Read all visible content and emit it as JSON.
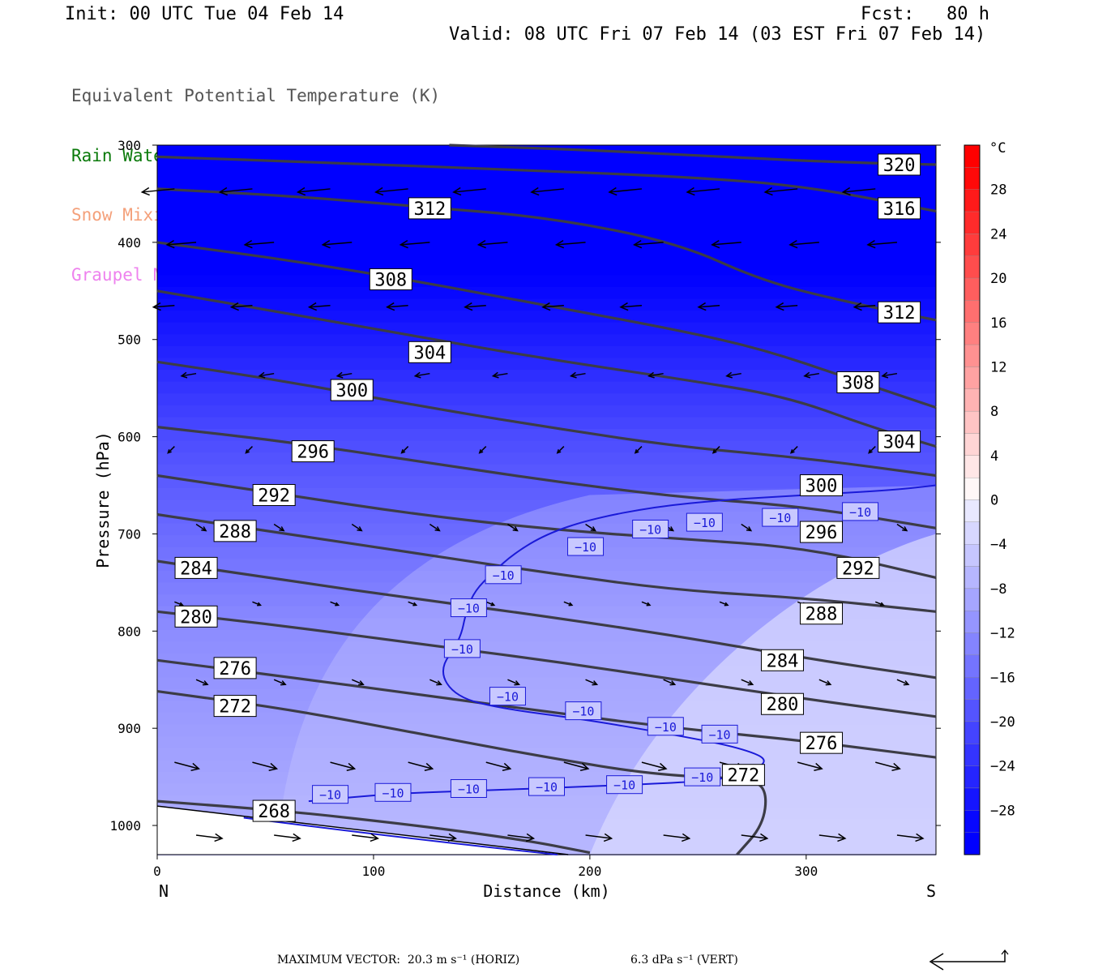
{
  "header": {
    "init": "Init: 00 UTC Tue 04 Feb 14",
    "fcst": "Fcst:   80 h",
    "valid": "Valid: 08 UTC Fri 07 Feb 14 (03 EST Fri 07 Feb 14)"
  },
  "legend": [
    {
      "text": "Equivalent Potential Temperature (K)",
      "color": "#555555"
    },
    {
      "text": "Rain Water Mixing Ratio (g/kg)",
      "color": "#0a7a0a"
    },
    {
      "text": "Snow Mixing Ratio (g/kg)",
      "color": "#f4a07a"
    },
    {
      "text": "Graupel Mixing Ratio (g/kg)",
      "color": "#ee82ee"
    }
  ],
  "footer": {
    "max_vector": "MAXIMUM VECTOR:  20.3 m s⁻¹ (HORIZ)",
    "vert": "6.3 dPa s⁻¹ (VERT)"
  },
  "chart_data": {
    "type": "cross-section contour",
    "xlabel": "Distance (km)",
    "ylabel": "Pressure (hPa)",
    "xlim": [
      0,
      360
    ],
    "ylim": [
      1030,
      300
    ],
    "x_ticks": [
      0,
      100,
      200,
      300
    ],
    "y_ticks": [
      300,
      400,
      500,
      600,
      700,
      800,
      900,
      1000
    ],
    "endpoints": {
      "left": "N",
      "right": "S"
    },
    "colorbar": {
      "unit": "°C",
      "labels": [
        28,
        24,
        20,
        16,
        12,
        8,
        4,
        0,
        -4,
        -8,
        -12,
        -16,
        -20,
        -24,
        -28
      ],
      "step": 2,
      "min": -32,
      "max": 32
    },
    "temperature_field": {
      "note": "shading: temperature, all values below 0 C",
      "approx_temp_by_pressure": [
        [
          300,
          -40
        ],
        [
          400,
          -32
        ],
        [
          500,
          -26
        ],
        [
          600,
          -20
        ],
        [
          700,
          -16
        ],
        [
          800,
          -12
        ],
        [
          900,
          -10
        ],
        [
          1000,
          -8
        ]
      ]
    },
    "theta_e_contours": [
      {
        "value": 268,
        "points": [
          [
            0,
            975
          ],
          [
            60,
            985
          ],
          [
            120,
            1000
          ],
          [
            170,
            1015
          ],
          [
            200,
            1028
          ]
        ]
      },
      {
        "value": 272,
        "points": [
          [
            0,
            862
          ],
          [
            60,
            880
          ],
          [
            120,
            905
          ],
          [
            180,
            930
          ],
          [
            230,
            948
          ],
          [
            275,
            952
          ],
          [
            282,
            965
          ],
          [
            280,
            1000
          ],
          [
            268,
            1030
          ]
        ]
      },
      {
        "value": 276,
        "points": [
          [
            0,
            830
          ],
          [
            60,
            847
          ],
          [
            120,
            865
          ],
          [
            180,
            883
          ],
          [
            240,
            900
          ],
          [
            300,
            913
          ],
          [
            360,
            930
          ]
        ]
      },
      {
        "value": 280,
        "points": [
          [
            0,
            780
          ],
          [
            60,
            795
          ],
          [
            120,
            813
          ],
          [
            180,
            830
          ],
          [
            240,
            850
          ],
          [
            300,
            870
          ],
          [
            360,
            888
          ]
        ]
      },
      {
        "value": 284,
        "points": [
          [
            0,
            728
          ],
          [
            60,
            748
          ],
          [
            120,
            767
          ],
          [
            180,
            785
          ],
          [
            240,
            805
          ],
          [
            300,
            828
          ],
          [
            360,
            848
          ]
        ]
      },
      {
        "value": 288,
        "points": [
          [
            0,
            680
          ],
          [
            60,
            700
          ],
          [
            120,
            720
          ],
          [
            180,
            740
          ],
          [
            240,
            758
          ],
          [
            300,
            766
          ],
          [
            360,
            780
          ]
        ]
      },
      {
        "value": 292,
        "points": [
          [
            0,
            640
          ],
          [
            60,
            660
          ],
          [
            120,
            680
          ],
          [
            180,
            695
          ],
          [
            240,
            705
          ],
          [
            300,
            714
          ],
          [
            360,
            745
          ]
        ]
      },
      {
        "value": 296,
        "points": [
          [
            0,
            590
          ],
          [
            60,
            605
          ],
          [
            120,
            625
          ],
          [
            180,
            645
          ],
          [
            240,
            662
          ],
          [
            300,
            672
          ],
          [
            360,
            694
          ]
        ]
      },
      {
        "value": 300,
        "points": [
          [
            0,
            523
          ],
          [
            60,
            543
          ],
          [
            120,
            568
          ],
          [
            180,
            590
          ],
          [
            240,
            610
          ],
          [
            300,
            622
          ],
          [
            360,
            640
          ]
        ]
      },
      {
        "value": 304,
        "points": [
          [
            0,
            450
          ],
          [
            60,
            473
          ],
          [
            120,
            497
          ],
          [
            180,
            520
          ],
          [
            240,
            540
          ],
          [
            290,
            558
          ],
          [
            330,
            590
          ],
          [
            360,
            610
          ]
        ]
      },
      {
        "value": 308,
        "points": [
          [
            0,
            400
          ],
          [
            60,
            418
          ],
          [
            120,
            440
          ],
          [
            180,
            465
          ],
          [
            240,
            490
          ],
          [
            280,
            510
          ],
          [
            320,
            540
          ],
          [
            360,
            570
          ]
        ]
      },
      {
        "value": 312,
        "points": [
          [
            0,
            345
          ],
          [
            60,
            352
          ],
          [
            120,
            363
          ],
          [
            180,
            374
          ],
          [
            240,
            400
          ],
          [
            280,
            440
          ],
          [
            320,
            462
          ],
          [
            360,
            480
          ]
        ]
      },
      {
        "value": 316,
        "points": [
          [
            0,
            312
          ],
          [
            80,
            318
          ],
          [
            160,
            325
          ],
          [
            240,
            332
          ],
          [
            300,
            342
          ],
          [
            360,
            368
          ]
        ]
      },
      {
        "value": 320,
        "points": [
          [
            135,
            300
          ],
          [
            200,
            305
          ],
          [
            260,
            312
          ],
          [
            320,
            318
          ],
          [
            360,
            320
          ]
        ]
      }
    ],
    "temp_contour_minus10": {
      "value": -10,
      "points": [
        [
          70,
          975
        ],
        [
          110,
          967
        ],
        [
          150,
          964
        ],
        [
          200,
          960
        ],
        [
          240,
          956
        ],
        [
          262,
          953
        ],
        [
          285,
          935
        ],
        [
          270,
          920
        ],
        [
          235,
          905
        ],
        [
          195,
          890
        ],
        [
          160,
          880
        ],
        [
          138,
          868
        ],
        [
          130,
          840
        ],
        [
          140,
          810
        ],
        [
          143,
          778
        ],
        [
          147,
          758
        ],
        [
          155,
          740
        ],
        [
          165,
          720
        ],
        [
          180,
          700
        ],
        [
          200,
          685
        ],
        [
          230,
          672
        ],
        [
          262,
          665
        ],
        [
          300,
          660
        ],
        [
          340,
          655
        ],
        [
          360,
          650
        ]
      ]
    },
    "contour_labels": [
      {
        "text": "320",
        "x": 343,
        "y": 320
      },
      {
        "text": "316",
        "x": 343,
        "y": 365
      },
      {
        "text": "312",
        "x": 126,
        "y": 365
      },
      {
        "text": "308",
        "x": 108,
        "y": 438
      },
      {
        "text": "312",
        "x": 343,
        "y": 472
      },
      {
        "text": "304",
        "x": 126,
        "y": 513
      },
      {
        "text": "308",
        "x": 324,
        "y": 544
      },
      {
        "text": "300",
        "x": 90,
        "y": 552
      },
      {
        "text": "304",
        "x": 343,
        "y": 605
      },
      {
        "text": "296",
        "x": 72,
        "y": 615
      },
      {
        "text": "300",
        "x": 307,
        "y": 650
      },
      {
        "text": "292",
        "x": 54,
        "y": 660
      },
      {
        "text": "296",
        "x": 307,
        "y": 698
      },
      {
        "text": "288",
        "x": 36,
        "y": 697
      },
      {
        "text": "292",
        "x": 324,
        "y": 735
      },
      {
        "text": "284",
        "x": 18,
        "y": 735
      },
      {
        "text": "288",
        "x": 307,
        "y": 782
      },
      {
        "text": "280",
        "x": 18,
        "y": 785
      },
      {
        "text": "284",
        "x": 289,
        "y": 830
      },
      {
        "text": "276",
        "x": 36,
        "y": 838
      },
      {
        "text": "280",
        "x": 289,
        "y": 875
      },
      {
        "text": "272",
        "x": 36,
        "y": 877
      },
      {
        "text": "276",
        "x": 307,
        "y": 915
      },
      {
        "text": "272",
        "x": 271,
        "y": 948
      },
      {
        "text": "268",
        "x": 54,
        "y": 985
      }
    ],
    "minus10_labels": [
      {
        "x": 80,
        "y": 968
      },
      {
        "x": 109,
        "y": 966
      },
      {
        "text": "-10",
        "x": 144,
        "y": 962
      },
      {
        "x": 180,
        "y": 960
      },
      {
        "x": 216,
        "y": 958
      },
      {
        "x": 252,
        "y": 950
      },
      {
        "x": 260,
        "y": 906
      },
      {
        "x": 235,
        "y": 898
      },
      {
        "x": 197,
        "y": 882
      },
      {
        "x": 162,
        "y": 867
      },
      {
        "x": 141,
        "y": 818
      },
      {
        "x": 144,
        "y": 776
      },
      {
        "x": 160,
        "y": 742
      },
      {
        "x": 198,
        "y": 713
      },
      {
        "x": 228,
        "y": 695
      },
      {
        "x": 253,
        "y": 688
      },
      {
        "x": 288,
        "y": 683
      },
      {
        "x": 325,
        "y": 677
      }
    ],
    "wind_vectors_note": "wind vectors along section; upper levels strong flow to the north (leftward), lower levels weak flow to the south (rightward)"
  }
}
